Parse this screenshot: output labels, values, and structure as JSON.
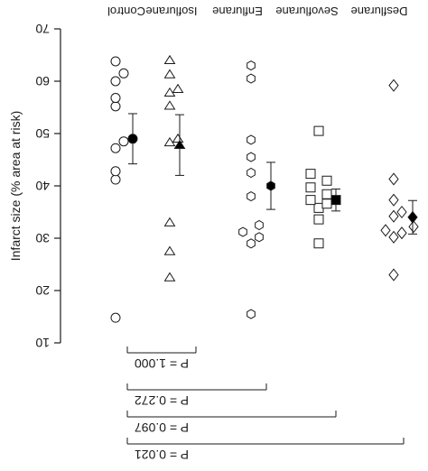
{
  "chart_data": {
    "type": "scatter",
    "orientation": "rotated-180",
    "ylabel": "Infarct size (% area at risk)",
    "yticks": [
      10,
      20,
      30,
      40,
      50,
      60,
      70
    ],
    "ylim": [
      10,
      70
    ],
    "categories": [
      "Control",
      "Isoflurane",
      "Enflurane",
      "Sevoflurane",
      "Desflurane"
    ],
    "markers": [
      "circle",
      "triangle",
      "hexagon",
      "square",
      "diamond"
    ],
    "series": [
      {
        "name": "Control",
        "points": [
          14.8,
          41.2,
          42.8,
          47.2,
          48.5,
          55.2,
          56.8,
          60.0,
          61.5,
          63.8
        ],
        "mean": 49.0,
        "sd": 4.8
      },
      {
        "name": "Isoflurane",
        "points": [
          22.5,
          27.5,
          33.0,
          48.3,
          49.0,
          55.3,
          57.8,
          58.5,
          61.3,
          64.0
        ],
        "mean": 47.8,
        "sd": 5.8
      },
      {
        "name": "Enflurane",
        "points": [
          15.5,
          29.0,
          30.2,
          31.2,
          32.5,
          38.0,
          42.5,
          45.5,
          48.8,
          60.5,
          63.0
        ],
        "mean": 40.0,
        "sd": 4.5
      },
      {
        "name": "Sevoflurane",
        "points": [
          29.0,
          33.6,
          35.8,
          36.6,
          37.3,
          38.4,
          39.7,
          41.0,
          42.3,
          50.5
        ],
        "mean": 37.3,
        "sd": 2.1
      },
      {
        "name": "Desflurane",
        "points": [
          23.0,
          30.2,
          31.0,
          31.5,
          32.2,
          34.2,
          35.0,
          37.3,
          41.3,
          59.2
        ],
        "mean": 34.0,
        "sd": 3.2
      }
    ],
    "comparisons": [
      {
        "label": "P = 1.000",
        "from": "Control",
        "to": "Isoflurane"
      },
      {
        "label": "P = 0.272",
        "from": "Control",
        "to": "Enflurane"
      },
      {
        "label": "P = 0.097",
        "from": "Control",
        "to": "Sevoflurane"
      },
      {
        "label": "P = 0.021",
        "from": "Control",
        "to": "Desflurane"
      }
    ]
  }
}
